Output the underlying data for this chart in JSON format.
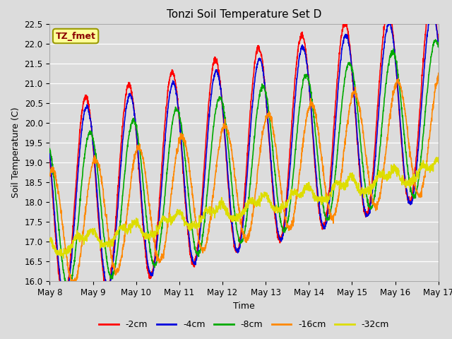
{
  "title": "Tonzi Soil Temperature Set D",
  "xlabel": "Time",
  "ylabel": "Soil Temperature (C)",
  "ylim": [
    16.0,
    22.5
  ],
  "xlim": [
    0,
    9
  ],
  "x_ticks": [
    0,
    1,
    2,
    3,
    4,
    5,
    6,
    7,
    8,
    9
  ],
  "x_tick_labels": [
    "May 8",
    "May 9",
    "May 10",
    "May 11",
    "May 12",
    "May 13",
    "May 14",
    "May 15",
    "May 16",
    "May 17"
  ],
  "y_ticks": [
    16.0,
    16.5,
    17.0,
    17.5,
    18.0,
    18.5,
    19.0,
    19.5,
    20.0,
    20.5,
    21.0,
    21.5,
    22.0,
    22.5
  ],
  "series": {
    "-2cm": {
      "color": "#FF0000",
      "lw": 1.2
    },
    "-4cm": {
      "color": "#0000DD",
      "lw": 1.2
    },
    "-8cm": {
      "color": "#00AA00",
      "lw": 1.2
    },
    "-16cm": {
      "color": "#FF8800",
      "lw": 1.2
    },
    "-32cm": {
      "color": "#DDDD00",
      "lw": 1.2
    }
  },
  "annotation_text": "TZ_fmet",
  "annotation_color": "#8B0000",
  "annotation_bg": "#FFFF99",
  "annotation_border": "#999900",
  "bg_color": "#DCDCDC",
  "grid_color": "#FFFFFF",
  "title_fontsize": 11,
  "label_fontsize": 9,
  "tick_fontsize": 8.5
}
